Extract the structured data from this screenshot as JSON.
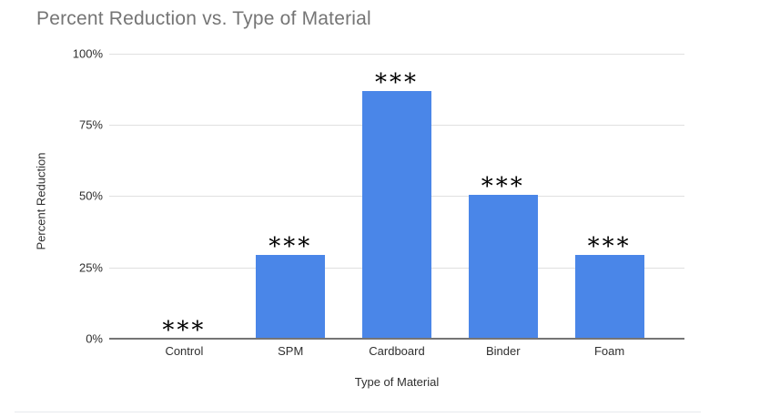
{
  "chart_data": {
    "type": "bar",
    "title": "Percent Reduction vs. Type of Material",
    "xlabel": "Type of Material",
    "ylabel": "Percent Reduction",
    "categories": [
      "Control",
      "SPM",
      "Cardboard",
      "Binder",
      "Foam"
    ],
    "values": [
      0,
      29.3,
      86.8,
      50.6,
      29.5
    ],
    "annotations": [
      "***",
      "***",
      "***",
      "***",
      "***"
    ],
    "ytick_labels": [
      "0%",
      "25%",
      "50%",
      "75%",
      "100%"
    ],
    "ylim": [
      0,
      100
    ],
    "grid": "horizontal-only",
    "legend": "none",
    "colors": {
      "bar": "#4a86e8",
      "gridline": "#e0e0e0",
      "axis_line": "#757575",
      "title": "#757575",
      "labels": "#2f2f2f",
      "annotation": "#000000"
    }
  }
}
